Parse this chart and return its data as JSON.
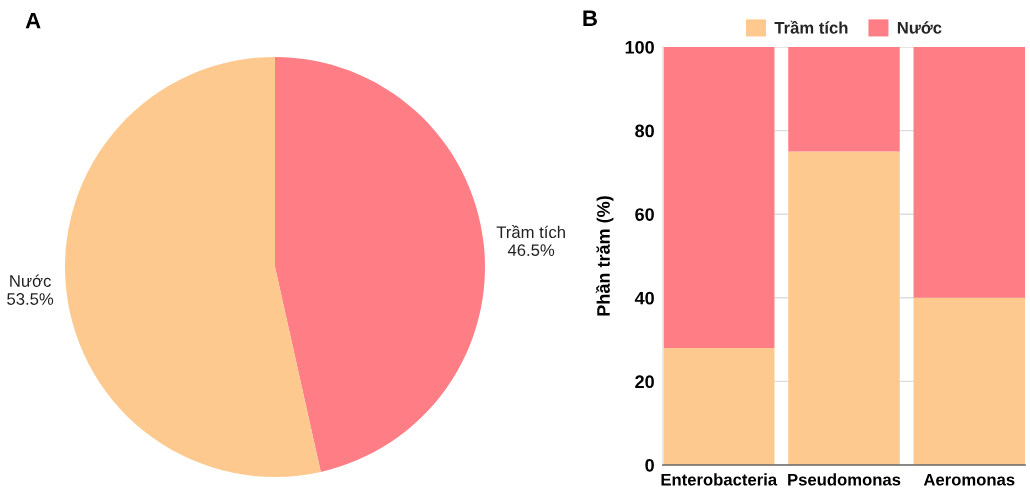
{
  "chart_data": [
    {
      "type": "pie",
      "title": "A",
      "categories": [
        "Trầm tích",
        "Nước"
      ],
      "values": [
        46.5,
        53.5
      ],
      "colors": [
        "#ff7e86",
        "#fec98f"
      ],
      "value_labels": [
        "46.5%",
        "53.5%"
      ]
    },
    {
      "type": "bar",
      "title": "B",
      "categories": [
        "Enterobacteria",
        "Pseudomonas",
        "Aeromonas"
      ],
      "stacked": true,
      "series": [
        {
          "name": "Trầm tích",
          "color": "#fec98f",
          "values": [
            28,
            75,
            40
          ]
        },
        {
          "name": "Nước",
          "color": "#ff7e86",
          "values": [
            72,
            25,
            60
          ]
        }
      ],
      "ylabel": "Phần trăm (%)",
      "ylim": [
        0,
        100
      ],
      "yticks": [
        0,
        20,
        40,
        60,
        80,
        100
      ],
      "grid": "y",
      "legend": "top"
    }
  ]
}
